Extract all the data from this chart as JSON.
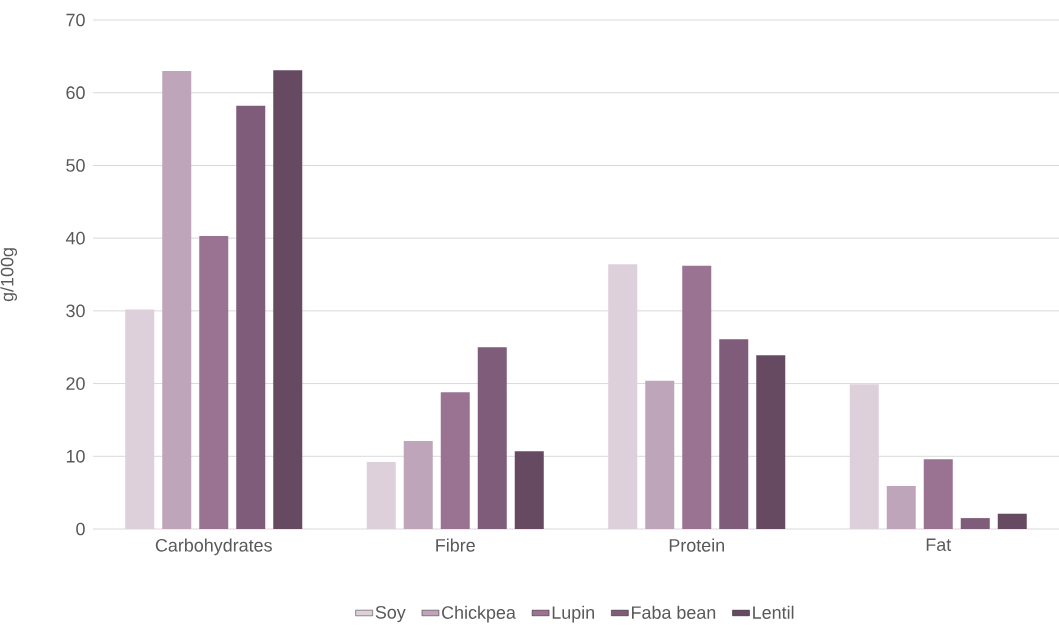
{
  "chart_data": {
    "type": "bar",
    "ylabel": "g/100g",
    "categories": [
      "Carbohydrates",
      "Fibre",
      "Protein",
      "Fat"
    ],
    "series": [
      {
        "name": "Soy",
        "color": "#ddd0da",
        "values": [
          30.2,
          9.2,
          36.4,
          19.9
        ]
      },
      {
        "name": "Chickpea",
        "color": "#bea5ba",
        "values": [
          63.0,
          12.1,
          20.4,
          5.9
        ]
      },
      {
        "name": "Lupin",
        "color": "#9a7393",
        "values": [
          40.3,
          18.8,
          36.2,
          9.6
        ]
      },
      {
        "name": "Faba bean",
        "color": "#7f5c79",
        "values": [
          58.2,
          25.0,
          26.1,
          1.5
        ]
      },
      {
        "name": "Lentil",
        "color": "#654a61",
        "values": [
          63.1,
          10.7,
          23.9,
          2.1
        ]
      }
    ],
    "ylim": [
      0,
      70
    ],
    "yticks": [
      0,
      10,
      20,
      30,
      40,
      50,
      60,
      70
    ],
    "grid": "y",
    "legend": "bottom"
  }
}
